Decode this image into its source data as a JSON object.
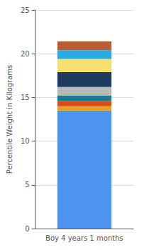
{
  "chart_data": {
    "type": "bar",
    "stacked": true,
    "categories": [
      "Boy 4 years 1 months"
    ],
    "ylabel": "Percentile Weight in Kilograms",
    "series": [
      {
        "color": "#4d94f0",
        "values": [
          13.5
        ]
      },
      {
        "color": "#e8a020",
        "values": [
          0.5
        ]
      },
      {
        "color": "#d94e12",
        "values": [
          0.6
        ]
      },
      {
        "color": "#1a7a90",
        "values": [
          0.6
        ]
      },
      {
        "color": "#b8b8b8",
        "values": [
          1.0
        ]
      },
      {
        "color": "#1e3a5f",
        "values": [
          1.7
        ]
      },
      {
        "color": "#f5e06e",
        "values": [
          1.5
        ]
      },
      {
        "color": "#29aae2",
        "values": [
          1.0
        ]
      },
      {
        "color": "#b85c38",
        "values": [
          1.0
        ]
      }
    ],
    "ylim": [
      0,
      25
    ],
    "yticks": [
      0,
      5,
      10,
      15,
      20,
      25
    ],
    "grid": true
  }
}
